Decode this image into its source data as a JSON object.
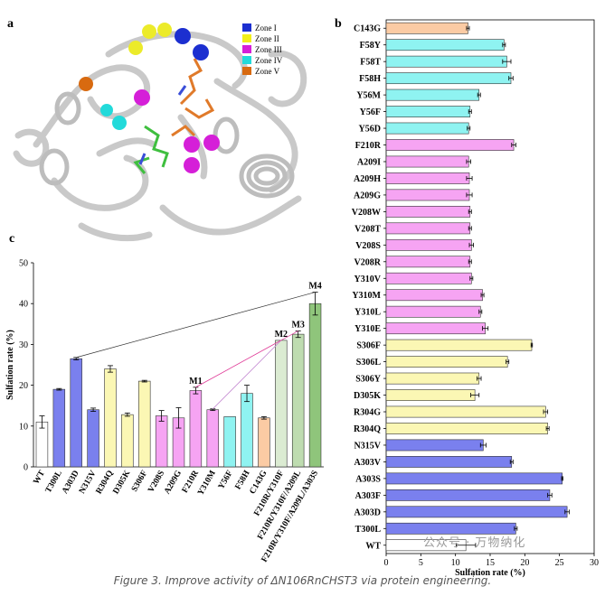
{
  "panels": {
    "a": {
      "label": "a",
      "legend": [
        {
          "name": "Zone I",
          "color": "#1c2fd0"
        },
        {
          "name": "Zone II",
          "color": "#f2ef1a"
        },
        {
          "name": "Zone III",
          "color": "#d51fd8"
        },
        {
          "name": "Zone IV",
          "color": "#22dada"
        },
        {
          "name": "Zone V",
          "color": "#d86a10"
        }
      ]
    }
  },
  "caption": "Figure 3. Improve activity of ΔN106RnCHST3 via protein engineering.",
  "watermark": "公众号 · 万物纳化",
  "chart_data": [
    {
      "id": "b",
      "label": "b",
      "type": "bar",
      "orientation": "horizontal",
      "xlabel": "Sulfation rate (%)",
      "xlim": [
        0,
        30
      ],
      "xticks": [
        "0",
        "5",
        "10",
        "15",
        "20",
        "25",
        "30"
      ],
      "categories": [
        "C143G",
        "F58Y",
        "F58T",
        "F58H",
        "Y56M",
        "Y56F",
        "Y56D",
        "F210R",
        "A209I",
        "A209H",
        "A209G",
        "V208W",
        "V208T",
        "V208S",
        "V208R",
        "Y310V",
        "Y310M",
        "Y310L",
        "Y310E",
        "S306F",
        "S306L",
        "S306Y",
        "D305K",
        "R304G",
        "R304Q",
        "N315V",
        "A303V",
        "A303S",
        "A303F",
        "A303D",
        "T300L",
        "WT"
      ],
      "values": [
        11.8,
        17.0,
        17.4,
        18.0,
        13.4,
        12.1,
        11.9,
        18.4,
        11.9,
        12.0,
        12.0,
        12.1,
        12.1,
        12.3,
        12.1,
        12.3,
        13.9,
        13.6,
        14.3,
        21.0,
        17.5,
        13.4,
        12.8,
        23.0,
        23.3,
        14.0,
        18.1,
        25.4,
        23.6,
        26.1,
        18.7,
        11.5
      ],
      "errors": [
        0.2,
        0.2,
        0.6,
        0.3,
        0.2,
        0.2,
        0.2,
        0.3,
        0.3,
        0.4,
        0.4,
        0.2,
        0.2,
        0.3,
        0.2,
        0.2,
        0.2,
        0.2,
        0.4,
        0.1,
        0.2,
        0.3,
        0.6,
        0.3,
        0.2,
        0.4,
        0.2,
        0.1,
        0.3,
        0.3,
        0.2,
        1.4
      ],
      "colors": [
        "#fbcba4",
        "#8ff3f1",
        "#8ff3f1",
        "#8ff3f1",
        "#8ff3f1",
        "#8ff3f1",
        "#8ff3f1",
        "#f6a4f3",
        "#f6a4f3",
        "#f6a4f3",
        "#f6a4f3",
        "#f6a4f3",
        "#f6a4f3",
        "#f6a4f3",
        "#f6a4f3",
        "#f6a4f3",
        "#f6a4f3",
        "#f6a4f3",
        "#f6a4f3",
        "#fbf7b4",
        "#fbf7b4",
        "#fbf7b4",
        "#fbf7b4",
        "#fbf7b4",
        "#fbf7b4",
        "#7a80ee",
        "#7a80ee",
        "#7a80ee",
        "#7a80ee",
        "#7a80ee",
        "#7a80ee",
        "#ffffff"
      ]
    },
    {
      "id": "c",
      "label": "c",
      "type": "bar",
      "orientation": "vertical",
      "ylabel": "Sulfation rate (%)",
      "ylim": [
        0,
        50
      ],
      "yticks": [
        "0",
        "10",
        "20",
        "30",
        "40",
        "50"
      ],
      "categories": [
        "WT",
        "T300L",
        "A303D",
        "N315V",
        "R304Q",
        "D305K",
        "S306F",
        "V208S",
        "A209G",
        "F210R",
        "Y310M",
        "Y56F",
        "F58H",
        "C143G",
        "F210R/Y310F",
        "F210R/Y310F/A209L",
        "F210R/Y310F/A209L/A303S"
      ],
      "values": [
        11.0,
        19.0,
        26.5,
        14.0,
        24.0,
        12.8,
        21.0,
        12.5,
        12.0,
        18.7,
        14.0,
        12.3,
        18.0,
        12.0,
        31.0,
        32.5,
        40.0
      ],
      "errors": [
        1.5,
        0.2,
        0.3,
        0.4,
        0.8,
        0.4,
        0.2,
        1.3,
        2.5,
        0.8,
        0.2,
        0.0,
        2.0,
        0.3,
        0.0,
        0.8,
        2.8
      ],
      "colors": [
        "#ffffff",
        "#7a80ee",
        "#7a80ee",
        "#7a80ee",
        "#fbf7b4",
        "#fbf7b4",
        "#fbf7b4",
        "#f6a4f3",
        "#f6a4f3",
        "#f6a4f3",
        "#f6a4f3",
        "#8ff3f1",
        "#8ff3f1",
        "#fbcba4",
        "#dbebd2",
        "#bedcb0",
        "#8fc57b"
      ],
      "annotations": [
        {
          "text": "M1",
          "index": 9
        },
        {
          "text": "M2",
          "index": 14
        },
        {
          "text": "M3",
          "index": 15
        },
        {
          "text": "M4",
          "index": 16
        }
      ]
    }
  ]
}
